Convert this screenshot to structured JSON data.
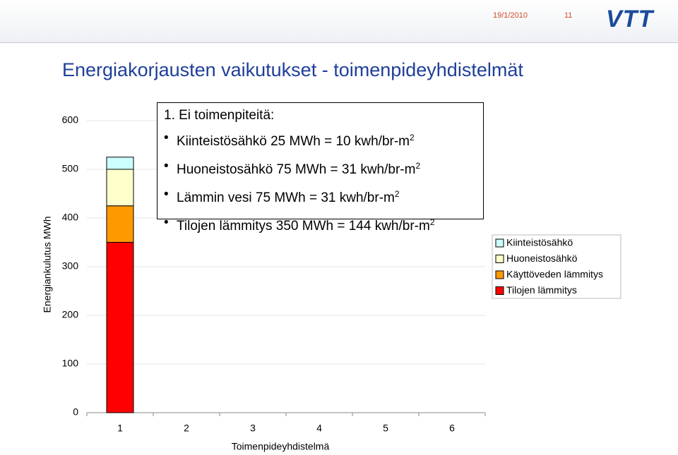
{
  "header": {
    "date": "19/1/2010",
    "page": "11",
    "logo": "VTT"
  },
  "callout": {
    "heading": "1. Ei toimenpiteitä:",
    "items": [
      {
        "text": "Kiinteistösähkö 25 MWh = 10 kwh/br-m",
        "sup": "2"
      },
      {
        "text": "Huoneistosähkö 75 MWh = 31 kwh/br-m",
        "sup": "2"
      },
      {
        "text": "Lämmin vesi 75 MWh = 31 kwh/br-m",
        "sup": "2"
      },
      {
        "text": "Tilojen lämmitys 350 MWh = 144 kwh/br-m",
        "sup": "2"
      }
    ]
  },
  "chart_data": {
    "type": "stacked-bar",
    "title": "Energiakorjausten vaikutukset - toimenpideyhdistelmät",
    "x_label": "Toimenpideyhdistelmä",
    "y_label": "Energiankulutus MWh",
    "categories": [
      "1",
      "2",
      "3",
      "4",
      "5",
      "6"
    ],
    "series": [
      {
        "name": "Tilojen lämmitys",
        "color": "#ff0000",
        "values": [
          350,
          null,
          null,
          null,
          null,
          null
        ]
      },
      {
        "name": "Käyttöveden lämmitys",
        "color": "#ff9900",
        "values": [
          75,
          null,
          null,
          null,
          null,
          null
        ]
      },
      {
        "name": "Huoneistosähkö",
        "color": "#ffffcc",
        "values": [
          75,
          null,
          null,
          null,
          null,
          null
        ]
      },
      {
        "name": "Kiinteistösähkö",
        "color": "#ccffff",
        "values": [
          25,
          null,
          null,
          null,
          null,
          null
        ]
      }
    ],
    "ylim": [
      0,
      600
    ],
    "yticks": [
      0,
      100,
      200,
      300,
      400,
      500,
      600
    ],
    "grid": true
  }
}
